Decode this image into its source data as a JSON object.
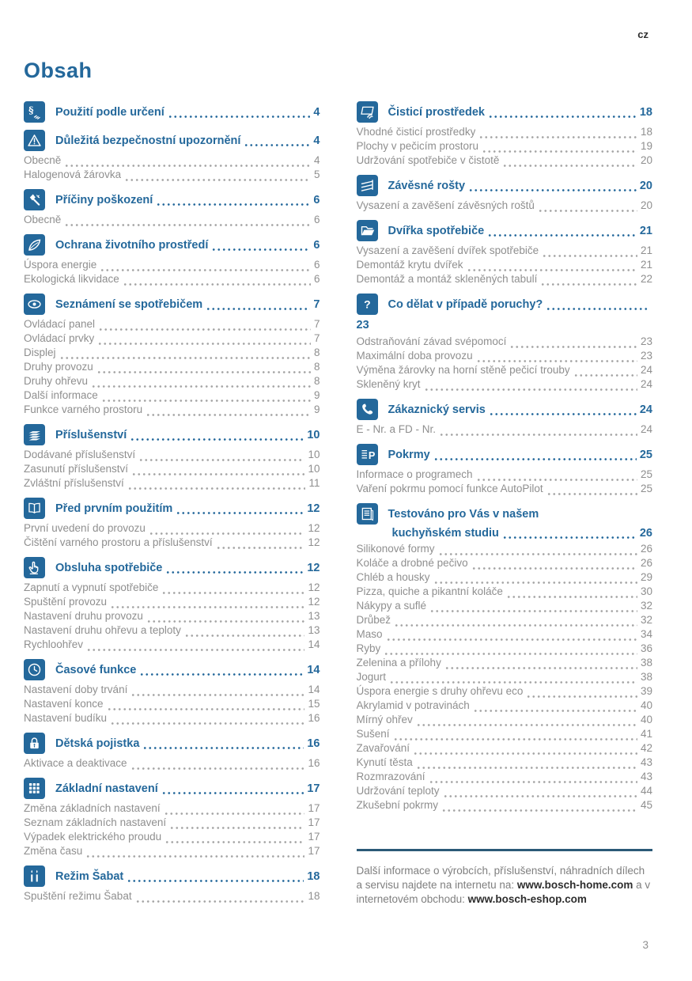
{
  "page": {
    "lang": "cz",
    "title": "Obsah",
    "number": "3"
  },
  "columns": [
    {
      "sections": [
        {
          "icon": "section-sign-hand-icon",
          "title": "Použití podle určení",
          "page": "4",
          "items": []
        },
        {
          "icon": "warning-icon",
          "title": "Důležitá bezpečnostní upozornění",
          "page": "4",
          "items": [
            {
              "label": "Obecně",
              "page": "4"
            },
            {
              "label": "Halogenová žárovka",
              "page": "5"
            }
          ]
        },
        {
          "icon": "damage-icon",
          "title": "Příčiny poškození",
          "page": "6",
          "items": [
            {
              "label": "Obecně",
              "page": "6"
            }
          ]
        },
        {
          "icon": "environment-leaf-icon",
          "title": "Ochrana životního prostředí",
          "page": "6",
          "items": [
            {
              "label": "Úspora energie",
              "page": "6"
            },
            {
              "label": "Ekologická likvidace",
              "page": "6"
            }
          ]
        },
        {
          "icon": "eye-icon",
          "title": "Seznámení se spotřebičem",
          "page": "7",
          "items": [
            {
              "label": "Ovládací panel",
              "page": "7"
            },
            {
              "label": "Ovládací prvky",
              "page": "7"
            },
            {
              "label": "Displej",
              "page": "8"
            },
            {
              "label": "Druhy provozu",
              "page": "8"
            },
            {
              "label": "Druhy ohřevu",
              "page": "8"
            },
            {
              "label": "Další informace",
              "page": "9"
            },
            {
              "label": "Funkce varného prostoru",
              "page": "9"
            }
          ]
        },
        {
          "icon": "accessories-layers-icon",
          "title": "Příslušenství",
          "page": "10",
          "items": [
            {
              "label": "Dodávané příslušenství",
              "page": "10"
            },
            {
              "label": "Zasunutí příslušenství",
              "page": "10"
            },
            {
              "label": "Zvláštní příslušenství",
              "page": "11"
            }
          ]
        },
        {
          "icon": "first-use-book-icon",
          "title": "Před prvním použitím",
          "page": "12",
          "items": [
            {
              "label": "První uvedení do provozu",
              "page": "12"
            },
            {
              "label": "Čištění varného prostoru a příslušenství",
              "page": "12"
            }
          ]
        },
        {
          "icon": "operation-hand-icon",
          "title": "Obsluha spotřebiče",
          "page": "12",
          "items": [
            {
              "label": "Zapnutí a vypnutí spotřebiče",
              "page": "12"
            },
            {
              "label": "Spuštění provozu",
              "page": "12"
            },
            {
              "label": "Nastavení druhu provozu",
              "page": "13"
            },
            {
              "label": "Nastavení druhu ohřevu a teploty",
              "page": "13"
            },
            {
              "label": "Rychloohřev",
              "page": "14"
            }
          ]
        },
        {
          "icon": "clock-icon",
          "title": "Časové funkce",
          "page": "14",
          "items": [
            {
              "label": "Nastavení doby trvání",
              "page": "14"
            },
            {
              "label": "Nastavení konce",
              "page": "15"
            },
            {
              "label": "Nastavení budíku",
              "page": "16"
            }
          ]
        },
        {
          "icon": "child-lock-icon",
          "title": "Dětská pojistka",
          "page": "16",
          "items": [
            {
              "label": "Aktivace a deaktivace",
              "page": "16"
            }
          ]
        },
        {
          "icon": "settings-grid-icon",
          "title": "Základní nastavení",
          "page": "17",
          "items": [
            {
              "label": "Změna základních nastavení",
              "page": "17"
            },
            {
              "label": "Seznam základních nastavení",
              "page": "17"
            },
            {
              "label": "Výpadek elektrického proudu",
              "page": "17"
            },
            {
              "label": "Změna času",
              "page": "17"
            }
          ]
        },
        {
          "icon": "sabbath-candles-icon",
          "title": "Režim Šabat",
          "page": "18",
          "items": [
            {
              "label": "Spuštění režimu Šabat",
              "page": "18"
            }
          ]
        }
      ]
    },
    {
      "sections": [
        {
          "icon": "cleaning-agent-icon",
          "title": "Čisticí prostředek",
          "page": "18",
          "items": [
            {
              "label": "Vhodné čisticí prostředky",
              "page": "18"
            },
            {
              "label": "Plochy v pečicím prostoru",
              "page": "19"
            },
            {
              "label": "Udržování spotřebiče v čistotě",
              "page": "20"
            }
          ]
        },
        {
          "icon": "shelf-rack-icon",
          "title": "Závěsné rošty",
          "page": "20",
          "items": [
            {
              "label": "Vysazení a zavěšení závěsných roštů",
              "page": "20"
            }
          ]
        },
        {
          "icon": "appliance-door-icon",
          "title": "Dvířka spotřebiče",
          "page": "21",
          "items": [
            {
              "label": "Vysazení a zavěšení dvířek spotřebiče",
              "page": "21"
            },
            {
              "label": "Demontáž krytu dvířek",
              "page": "21"
            },
            {
              "label": "Demontáž a montáž skleněných tabulí",
              "page": "22"
            }
          ]
        },
        {
          "icon": "trouble-question-icon",
          "title": "Co dělat v případě poruchy?",
          "page": "23",
          "page_newline": true,
          "items": [
            {
              "label": "Odstraňování závad svépomocí",
              "page": "23"
            },
            {
              "label": "Maximální doba provozu",
              "page": "23"
            },
            {
              "label": "Výměna žárovky na horní stěně pečicí trouby",
              "page": "24"
            },
            {
              "label": "Skleněný kryt",
              "page": "24"
            }
          ]
        },
        {
          "icon": "customer-service-phone-icon",
          "title": "Zákaznický servis",
          "page": "24",
          "items": [
            {
              "label": "E - Nr. a FD - Nr.",
              "page": "24"
            }
          ]
        },
        {
          "icon": "dishes-p-icon",
          "title": "Pokrmy",
          "page": "25",
          "items": [
            {
              "label": "Informace o programech",
              "page": "25"
            },
            {
              "label": "Vaření pokrmu pomocí funkce AutoPilot",
              "page": "25"
            }
          ]
        },
        {
          "icon": "tested-document-icon",
          "title": "Testováno pro Vás v našem",
          "title_line2": "kuchyňském studiu",
          "page": "26",
          "items": [
            {
              "label": "Silikonové formy",
              "page": "26"
            },
            {
              "label": "Koláče a drobné pečivo",
              "page": "26"
            },
            {
              "label": "Chléb a housky",
              "page": "29"
            },
            {
              "label": "Pizza, quiche a pikantní koláče",
              "page": "30"
            },
            {
              "label": "Nákypy a suflé",
              "page": "32"
            },
            {
              "label": "Drůbež",
              "page": "32"
            },
            {
              "label": "Maso",
              "page": "34"
            },
            {
              "label": "Ryby",
              "page": "36"
            },
            {
              "label": "Zelenina a přílohy",
              "page": "38"
            },
            {
              "label": "Jogurt",
              "page": "38"
            },
            {
              "label": "Úspora energie s druhy ohřevu eco",
              "page": "39"
            },
            {
              "label": "Akrylamid v potravinách",
              "page": "40"
            },
            {
              "label": "Mírný ohřev",
              "page": "40"
            },
            {
              "label": "Sušení",
              "page": "41"
            },
            {
              "label": "Zavařování",
              "page": "42"
            },
            {
              "label": "Kynutí těsta",
              "page": "43"
            },
            {
              "label": "Rozmrazování",
              "page": "43"
            },
            {
              "label": "Udržování teploty",
              "page": "44"
            },
            {
              "label": "Zkušební pokrmy",
              "page": "45"
            }
          ]
        }
      ]
    }
  ],
  "footer": {
    "parts": [
      {
        "text": "Další informace o výrobcích, příslušenství, náhradních dílech a servisu najdete na internetu na: ",
        "bold": false
      },
      {
        "text": "www.bosch-home.com",
        "bold": true
      },
      {
        "text": " a v internetovém obchodu: ",
        "bold": false
      },
      {
        "text": "www.bosch-eshop.com",
        "bold": true
      }
    ]
  },
  "colors": {
    "accent_blue": "#24689b",
    "item_gray": "#8f8f8f",
    "separator": "#2b5a77"
  }
}
